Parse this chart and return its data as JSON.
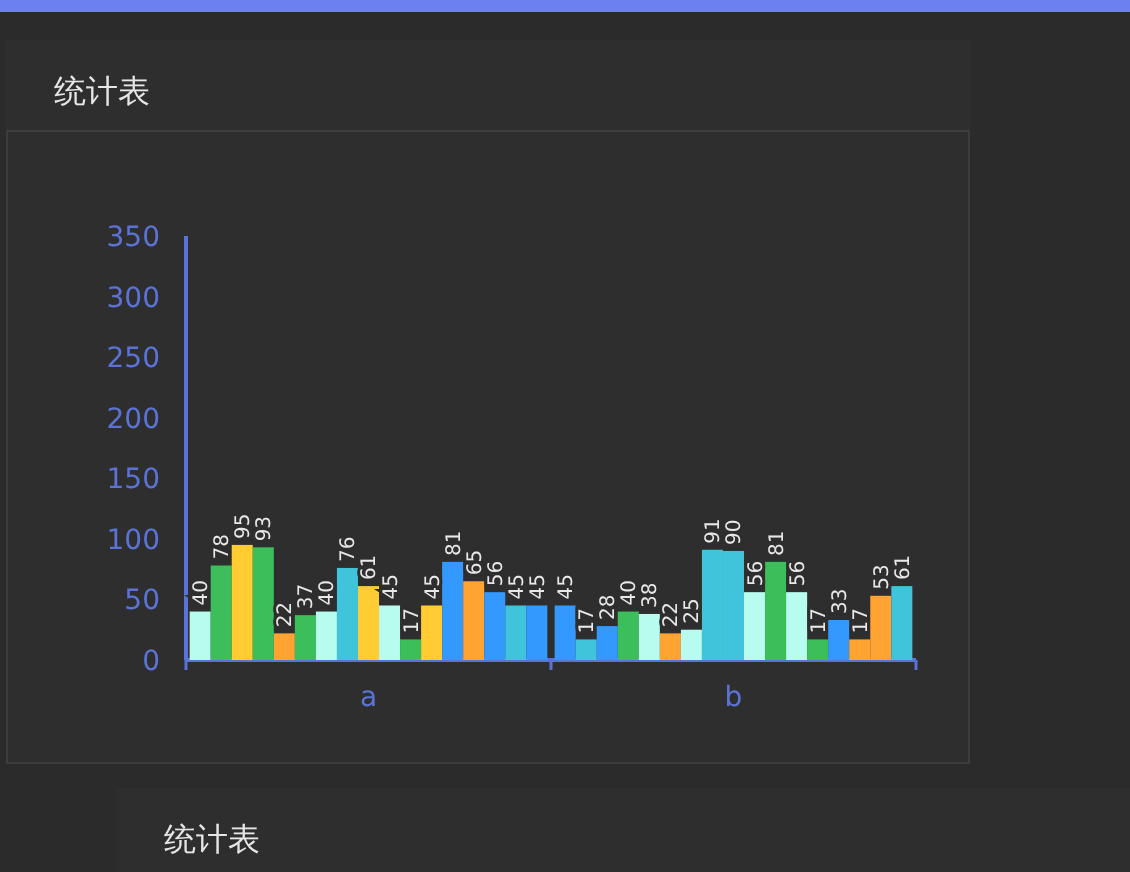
{
  "chart_data": [
    {
      "type": "bar",
      "title": "统计表",
      "categories": [
        "a",
        "b"
      ],
      "ylim": [
        0,
        350
      ],
      "yticks": [
        0,
        50,
        100,
        150,
        200,
        250,
        300,
        350
      ],
      "data_labels": true,
      "series": [
        {
          "colors": [
            "#b8fcef",
            "#3399ff"
          ],
          "values": [
            40,
            45
          ]
        },
        {
          "colors": [
            "#3cbf5a",
            "#40c4db"
          ],
          "values": [
            78,
            17
          ]
        },
        {
          "colors": [
            "#ffcc33",
            "#3399ff"
          ],
          "values": [
            95,
            28
          ]
        },
        {
          "colors": [
            "#3cbf5a",
            "#3cbf5a"
          ],
          "values": [
            93,
            40
          ]
        },
        {
          "colors": [
            "#ffa333",
            "#b8fcef"
          ],
          "values": [
            22,
            38
          ]
        },
        {
          "colors": [
            "#3cbf5a",
            "#ffa333"
          ],
          "values": [
            37,
            22
          ]
        },
        {
          "colors": [
            "#b8fcef",
            "#b8fcef"
          ],
          "values": [
            40,
            25
          ]
        },
        {
          "colors": [
            "#40c4db",
            "#40c4db"
          ],
          "values": [
            76,
            91
          ]
        },
        {
          "colors": [
            "#ffcc33",
            "#40c4db"
          ],
          "values": [
            61,
            90
          ]
        },
        {
          "colors": [
            "#b8fcef",
            "#b8fcef"
          ],
          "values": [
            45,
            56
          ]
        },
        {
          "colors": [
            "#3cbf5a",
            "#3cbf5a"
          ],
          "values": [
            17,
            81
          ]
        },
        {
          "colors": [
            "#ffcc33",
            "#b8fcef"
          ],
          "values": [
            45,
            56
          ]
        },
        {
          "colors": [
            "#3399ff",
            "#3cbf5a"
          ],
          "values": [
            81,
            17
          ]
        },
        {
          "colors": [
            "#ffa333",
            "#3399ff"
          ],
          "values": [
            65,
            33
          ]
        },
        {
          "colors": [
            "#3399ff",
            "#ffa333"
          ],
          "values": [
            56,
            17
          ]
        },
        {
          "colors": [
            "#40c4db",
            "#ffa333"
          ],
          "values": [
            45,
            53
          ]
        },
        {
          "colors": [
            "#3399ff",
            "#40c4db"
          ],
          "values": [
            45,
            61
          ]
        }
      ]
    },
    {
      "type": "other",
      "title": "统计表"
    }
  ]
}
